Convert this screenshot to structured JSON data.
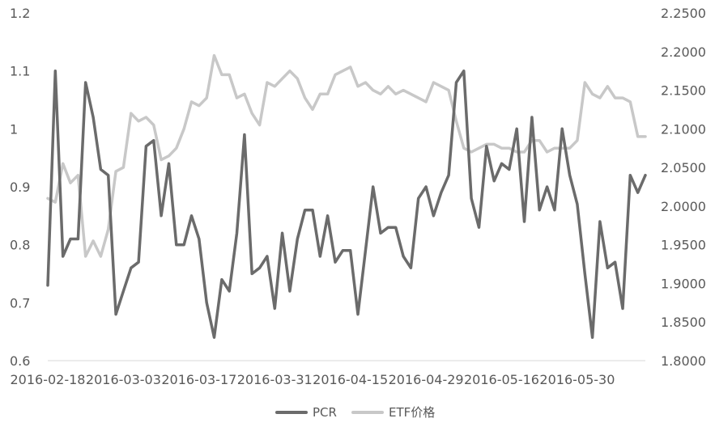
{
  "chart_data": {
    "type": "line",
    "title": "",
    "xlabel": "",
    "ylabel": "",
    "y_left_ticks": [
      "0.6",
      "0.7",
      "0.8",
      "0.9",
      "1",
      "1.1",
      "1.2"
    ],
    "y_right_ticks": [
      "1.8000",
      "1.8500",
      "1.9000",
      "1.9500",
      "2.0000",
      "2.0500",
      "2.1000",
      "2.1500",
      "2.2000",
      "2.2500"
    ],
    "ylim_left": [
      0.6,
      1.2
    ],
    "ylim_right": [
      1.8,
      2.25
    ],
    "x_tick_labels": [
      "2016-02-18",
      "2016-03-03",
      "2016-03-17",
      "2016-03-31",
      "2016-04-15",
      "2016-04-29",
      "2016-05-16",
      "2016-05-30"
    ],
    "x_tick_indices": [
      0,
      10,
      20,
      30,
      40,
      50,
      60,
      70
    ],
    "grid": false,
    "legend_position": "bottom-center",
    "series": [
      {
        "name": "PCR",
        "axis": "left",
        "color": "#6b6b6b",
        "values": [
          0.73,
          1.1,
          0.78,
          0.81,
          0.81,
          1.08,
          1.02,
          0.93,
          0.92,
          0.68,
          0.72,
          0.76,
          0.77,
          0.97,
          0.98,
          0.85,
          0.94,
          0.8,
          0.8,
          0.85,
          0.81,
          0.7,
          0.64,
          0.74,
          0.72,
          0.82,
          0.99,
          0.75,
          0.76,
          0.78,
          0.69,
          0.82,
          0.72,
          0.81,
          0.86,
          0.86,
          0.78,
          0.85,
          0.77,
          0.79,
          0.79,
          0.68,
          0.79,
          0.9,
          0.82,
          0.83,
          0.83,
          0.78,
          0.76,
          0.88,
          0.9,
          0.85,
          0.89,
          0.92,
          1.08,
          1.1,
          0.88,
          0.83,
          0.97,
          0.91,
          0.94,
          0.93,
          1.0,
          0.84,
          1.02,
          0.86,
          0.9,
          0.86,
          1.0,
          0.92,
          0.87,
          0.75,
          0.64,
          0.84,
          0.76,
          0.77,
          0.69,
          0.92,
          0.89,
          0.92
        ]
      },
      {
        "name": "ETF价格",
        "axis": "right",
        "color": "#c8c8c8",
        "values": [
          2.01,
          2.005,
          2.055,
          2.03,
          2.04,
          1.935,
          1.955,
          1.935,
          1.97,
          2.045,
          2.05,
          2.12,
          2.11,
          2.115,
          2.105,
          2.06,
          2.065,
          2.075,
          2.1,
          2.135,
          2.13,
          2.14,
          2.195,
          2.17,
          2.17,
          2.14,
          2.145,
          2.12,
          2.105,
          2.16,
          2.155,
          2.165,
          2.175,
          2.165,
          2.14,
          2.125,
          2.145,
          2.145,
          2.17,
          2.175,
          2.18,
          2.155,
          2.16,
          2.15,
          2.145,
          2.155,
          2.145,
          2.15,
          2.145,
          2.14,
          2.135,
          2.16,
          2.155,
          2.15,
          2.11,
          2.075,
          2.07,
          2.075,
          2.08,
          2.08,
          2.075,
          2.075,
          2.07,
          2.07,
          2.085,
          2.085,
          2.07,
          2.075,
          2.075,
          2.075,
          2.085,
          2.16,
          2.145,
          2.14,
          2.155,
          2.14,
          2.14,
          2.135,
          2.09,
          2.09
        ]
      }
    ]
  },
  "legend": {
    "items": [
      {
        "label": "PCR",
        "color": "#6b6b6b"
      },
      {
        "label": "ETF价格",
        "color": "#c8c8c8"
      }
    ]
  }
}
